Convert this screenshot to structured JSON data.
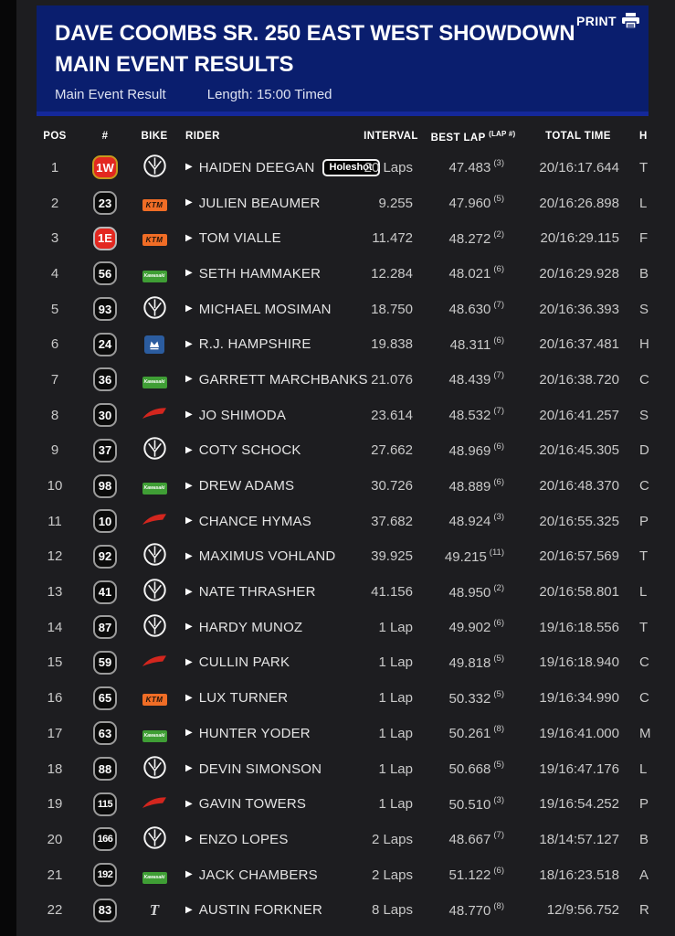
{
  "header": {
    "title": "DAVE COOMBS SR. 250 EAST WEST SHOWDOWN MAIN EVENT RESULTS",
    "print_label": "PRINT",
    "result_type": "Main Event Result",
    "length": "Length: 15:00 Timed"
  },
  "icons": {
    "expand_arrow": "▶"
  },
  "brands": {
    "ktm": "KTM",
    "kawasaki": "Kawasaki",
    "triumph": "T"
  },
  "colors": {
    "header_blue": "#0a1e6e",
    "header_blue_accent": "#14289a",
    "page_bg": "#1d1d20",
    "ktm_orange": "#f06d26",
    "kawasaki_green": "#3f9e35",
    "husqvarna_blue": "#2b5c9f",
    "honda_red": "#d3261e",
    "plate_red": "#e32820",
    "plate_gold_border": "#c6991c"
  },
  "table": {
    "columns": {
      "pos": "POS",
      "num": "#",
      "bike": "BIKE",
      "rider": "RIDER",
      "interval": "INTERVAL",
      "best_lap": "BEST LAP",
      "best_lap_sub": "(LAP #)",
      "total": "TOTAL TIME",
      "hometown": "H"
    },
    "rows": [
      {
        "pos": "1",
        "num": "1W",
        "plate": "redgold",
        "bike": "yamaha",
        "rider": "HAIDEN DEEGAN",
        "badge": "Holeshot",
        "interval": "20 Laps",
        "best_lap": "47.483",
        "best_lap_no": "(3)",
        "total": "20/16:17.644",
        "hometown": "T"
      },
      {
        "pos": "2",
        "num": "23",
        "plate": "std",
        "bike": "ktm",
        "rider": "JULIEN BEAUMER",
        "badge": "",
        "interval": "9.255",
        "best_lap": "47.960",
        "best_lap_no": "(5)",
        "total": "20/16:26.898",
        "hometown": "L"
      },
      {
        "pos": "3",
        "num": "1E",
        "plate": "red",
        "bike": "ktm",
        "rider": "TOM VIALLE",
        "badge": "",
        "interval": "11.472",
        "best_lap": "48.272",
        "best_lap_no": "(2)",
        "total": "20/16:29.115",
        "hometown": "F"
      },
      {
        "pos": "4",
        "num": "56",
        "plate": "std",
        "bike": "kawasaki",
        "rider": "SETH HAMMAKER",
        "badge": "",
        "interval": "12.284",
        "best_lap": "48.021",
        "best_lap_no": "(6)",
        "total": "20/16:29.928",
        "hometown": "B"
      },
      {
        "pos": "5",
        "num": "93",
        "plate": "std",
        "bike": "yamaha",
        "rider": "MICHAEL MOSIMAN",
        "badge": "",
        "interval": "18.750",
        "best_lap": "48.630",
        "best_lap_no": "(7)",
        "total": "20/16:36.393",
        "hometown": "S"
      },
      {
        "pos": "6",
        "num": "24",
        "plate": "std",
        "bike": "husqvarna",
        "rider": "R.J. HAMPSHIRE",
        "badge": "",
        "interval": "19.838",
        "best_lap": "48.311",
        "best_lap_no": "(6)",
        "total": "20/16:37.481",
        "hometown": "H"
      },
      {
        "pos": "7",
        "num": "36",
        "plate": "std",
        "bike": "kawasaki",
        "rider": "GARRETT MARCHBANKS",
        "badge": "",
        "interval": "21.076",
        "best_lap": "48.439",
        "best_lap_no": "(7)",
        "total": "20/16:38.720",
        "hometown": "C"
      },
      {
        "pos": "8",
        "num": "30",
        "plate": "std",
        "bike": "honda",
        "rider": "JO SHIMODA",
        "badge": "",
        "interval": "23.614",
        "best_lap": "48.532",
        "best_lap_no": "(7)",
        "total": "20/16:41.257",
        "hometown": "S"
      },
      {
        "pos": "9",
        "num": "37",
        "plate": "std",
        "bike": "yamaha",
        "rider": "COTY SCHOCK",
        "badge": "",
        "interval": "27.662",
        "best_lap": "48.969",
        "best_lap_no": "(6)",
        "total": "20/16:45.305",
        "hometown": "D"
      },
      {
        "pos": "10",
        "num": "98",
        "plate": "std",
        "bike": "kawasaki",
        "rider": "DREW ADAMS",
        "badge": "",
        "interval": "30.726",
        "best_lap": "48.889",
        "best_lap_no": "(6)",
        "total": "20/16:48.370",
        "hometown": "C"
      },
      {
        "pos": "11",
        "num": "10",
        "plate": "std",
        "bike": "honda",
        "rider": "CHANCE HYMAS",
        "badge": "",
        "interval": "37.682",
        "best_lap": "48.924",
        "best_lap_no": "(3)",
        "total": "20/16:55.325",
        "hometown": "P"
      },
      {
        "pos": "12",
        "num": "92",
        "plate": "std",
        "bike": "yamaha",
        "rider": "MAXIMUS VOHLAND",
        "badge": "",
        "interval": "39.925",
        "best_lap": "49.215",
        "best_lap_no": "(11)",
        "total": "20/16:57.569",
        "hometown": "T"
      },
      {
        "pos": "13",
        "num": "41",
        "plate": "std",
        "bike": "yamaha",
        "rider": "NATE THRASHER",
        "badge": "",
        "interval": "41.156",
        "best_lap": "48.950",
        "best_lap_no": "(2)",
        "total": "20/16:58.801",
        "hometown": "L"
      },
      {
        "pos": "14",
        "num": "87",
        "plate": "std",
        "bike": "yamaha",
        "rider": "HARDY MUNOZ",
        "badge": "",
        "interval": "1 Lap",
        "best_lap": "49.902",
        "best_lap_no": "(6)",
        "total": "19/16:18.556",
        "hometown": "T"
      },
      {
        "pos": "15",
        "num": "59",
        "plate": "std",
        "bike": "honda",
        "rider": "CULLIN PARK",
        "badge": "",
        "interval": "1 Lap",
        "best_lap": "49.818",
        "best_lap_no": "(5)",
        "total": "19/16:18.940",
        "hometown": "C"
      },
      {
        "pos": "16",
        "num": "65",
        "plate": "std",
        "bike": "ktm",
        "rider": "LUX TURNER",
        "badge": "",
        "interval": "1 Lap",
        "best_lap": "50.332",
        "best_lap_no": "(5)",
        "total": "19/16:34.990",
        "hometown": "C"
      },
      {
        "pos": "17",
        "num": "63",
        "plate": "std",
        "bike": "kawasaki",
        "rider": "HUNTER YODER",
        "badge": "",
        "interval": "1 Lap",
        "best_lap": "50.261",
        "best_lap_no": "(8)",
        "total": "19/16:41.000",
        "hometown": "M"
      },
      {
        "pos": "18",
        "num": "88",
        "plate": "std",
        "bike": "yamaha",
        "rider": "DEVIN SIMONSON",
        "badge": "",
        "interval": "1 Lap",
        "best_lap": "50.668",
        "best_lap_no": "(5)",
        "total": "19/16:47.176",
        "hometown": "L"
      },
      {
        "pos": "19",
        "num": "115",
        "plate": "std",
        "bike": "honda",
        "rider": "GAVIN TOWERS",
        "badge": "",
        "interval": "1 Lap",
        "best_lap": "50.510",
        "best_lap_no": "(3)",
        "total": "19/16:54.252",
        "hometown": "P"
      },
      {
        "pos": "20",
        "num": "166",
        "plate": "std",
        "bike": "yamaha",
        "rider": "ENZO LOPES",
        "badge": "",
        "interval": "2 Laps",
        "best_lap": "48.667",
        "best_lap_no": "(7)",
        "total": "18/14:57.127",
        "hometown": "B"
      },
      {
        "pos": "21",
        "num": "192",
        "plate": "std",
        "bike": "kawasaki",
        "rider": "JACK CHAMBERS",
        "badge": "",
        "interval": "2 Laps",
        "best_lap": "51.122",
        "best_lap_no": "(6)",
        "total": "18/16:23.518",
        "hometown": "A"
      },
      {
        "pos": "22",
        "num": "83",
        "plate": "std",
        "bike": "triumph",
        "rider": "AUSTIN FORKNER",
        "badge": "",
        "interval": "8 Laps",
        "best_lap": "48.770",
        "best_lap_no": "(8)",
        "total": "12/9:56.752",
        "hometown": "R"
      }
    ]
  }
}
